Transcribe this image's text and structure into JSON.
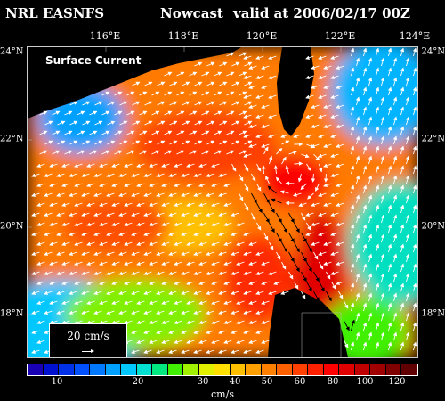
{
  "header": {
    "model": "NRL EASNFS",
    "run_type": "Nowcast",
    "valid": "valid at 2006/02/17 00Z"
  },
  "map": {
    "inset_label": "Surface Current",
    "lon_labels": [
      "116°E",
      "118°E",
      "120°E",
      "122°E",
      "124°E"
    ],
    "lat_labels": [
      "24°N",
      "22°N",
      "20°N",
      "18°N"
    ],
    "lon_range": [
      114,
      124
    ],
    "lat_range": [
      16.8,
      24
    ],
    "land_color": "#000000",
    "vector_color": "#ffffff",
    "high_speed_vector_color": "#000000"
  },
  "scale_vector": {
    "label": "20 cm/s",
    "value_cm_s": 20
  },
  "colorbar": {
    "unit": "cm/s",
    "tick_labels": [
      "10",
      "20",
      "30",
      "40",
      "50",
      "60",
      "80",
      "100",
      "120"
    ],
    "colors": [
      "#1a00b4",
      "#0010d0",
      "#0030e8",
      "#0050ff",
      "#0078ff",
      "#00a0ff",
      "#00c8ff",
      "#00e0d0",
      "#00e880",
      "#40f000",
      "#a0f000",
      "#e0f000",
      "#ffe000",
      "#ffc000",
      "#ffa000",
      "#ff8000",
      "#ff6000",
      "#ff4000",
      "#ff2000",
      "#ff0000",
      "#e00000",
      "#c00000",
      "#a00000",
      "#800000",
      "#600000"
    ]
  }
}
